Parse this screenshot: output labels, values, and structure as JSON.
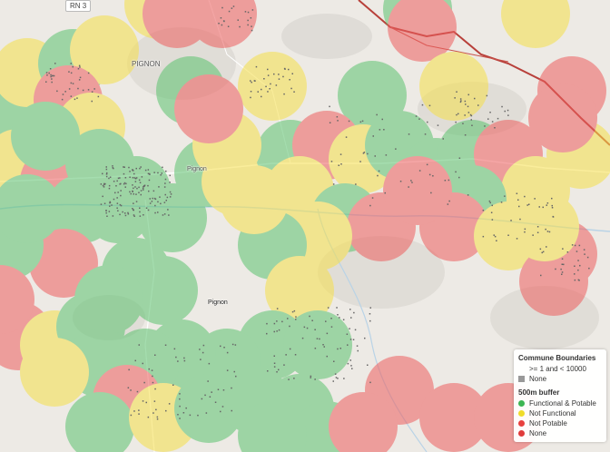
{
  "map": {
    "road_shield": "RN 3",
    "labels": {
      "pignon_top": "PIGNON",
      "pignon_center": "Pignon",
      "pignon_town": "Pignon"
    }
  },
  "legend": {
    "communes_title": "Commune Boundaries",
    "communes_item": ">= 1 and < 10000",
    "communes_none": "None",
    "buffer_title": "500m buffer",
    "items": [
      {
        "label": "Functional & Potable",
        "color": "#3db553"
      },
      {
        "label": "Not Functional",
        "color": "#f0dc2a"
      },
      {
        "label": "Not Potable",
        "color": "#e8403e"
      },
      {
        "label": "None",
        "color": "#e03a3a"
      }
    ],
    "none_swatch_color": "#999999"
  },
  "colors": {
    "green": "#5cc36f",
    "yellow": "#f6e04a",
    "red": "#ee5f5f"
  }
}
